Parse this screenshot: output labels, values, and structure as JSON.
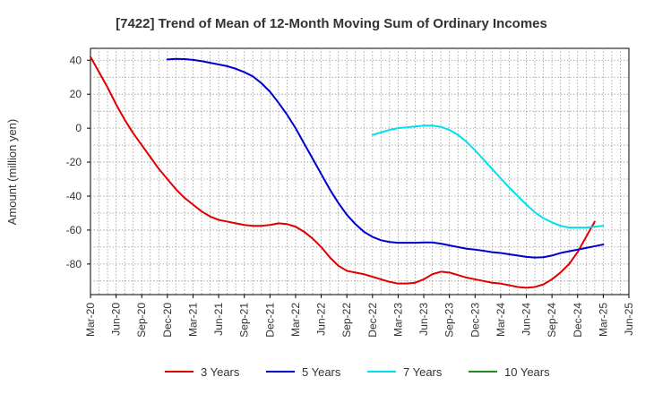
{
  "chart_data": {
    "type": "line",
    "title": "[7422]  Trend of Mean of 12-Month Moving Sum of Ordinary Incomes",
    "ylabel": "Amount (million yen)",
    "xlabel": "",
    "ylim": [
      -98,
      47
    ],
    "yticks": [
      40,
      20,
      0,
      -20,
      -40,
      -60,
      -80
    ],
    "x_start": "2020-03",
    "x_end": "2025-06",
    "x_tick_labels": [
      "Mar-20",
      "Jun-20",
      "Sep-20",
      "Dec-20",
      "Mar-21",
      "Jun-21",
      "Sep-21",
      "Dec-21",
      "Mar-22",
      "Jun-22",
      "Sep-22",
      "Dec-22",
      "Mar-23",
      "Jun-23",
      "Sep-23",
      "Dec-23",
      "Mar-24",
      "Jun-24",
      "Sep-24",
      "Dec-24",
      "Mar-25",
      "Jun-25"
    ],
    "grid": true,
    "series": [
      {
        "name": "3 Years",
        "color": "#e00000",
        "start_index": 0,
        "values": [
          42,
          33,
          24,
          14,
          5,
          -3,
          -10,
          -17,
          -24,
          -30,
          -36,
          -41,
          -45,
          -49,
          -52,
          -54,
          -55,
          -56,
          -57,
          -57.5,
          -57.5,
          -57,
          -56,
          -56.5,
          -58,
          -61,
          -65,
          -70,
          -76,
          -81,
          -84,
          -85,
          -86,
          -87.5,
          -89,
          -90.5,
          -91.5,
          -91.5,
          -91,
          -89,
          -86,
          -84.5,
          -85,
          -86.5,
          -88,
          -89,
          -90,
          -91,
          -91.5,
          -92.5,
          -93.5,
          -94,
          -93.5,
          -92,
          -89,
          -85,
          -80,
          -73,
          -64,
          -55
        ]
      },
      {
        "name": "5 Years",
        "color": "#0000cc",
        "start_index": 9,
        "values": [
          40.5,
          40.8,
          40.7,
          40.2,
          39.5,
          38.5,
          37.5,
          36.5,
          35,
          33,
          30.5,
          26.5,
          21.5,
          15,
          8,
          0,
          -9,
          -18,
          -27,
          -36,
          -44,
          -51,
          -56.5,
          -61,
          -64,
          -66,
          -67,
          -67.5,
          -67.5,
          -67.5,
          -67.3,
          -67.3,
          -68,
          -69,
          -70,
          -71,
          -71.5,
          -72.2,
          -73,
          -73.5,
          -74.3,
          -75,
          -75.8,
          -76.2,
          -76,
          -75,
          -73.5,
          -72.5,
          -71.5,
          -70.5,
          -69.5,
          -68.5
        ]
      },
      {
        "name": "7 Years",
        "color": "#00e0ee",
        "start_index": 33,
        "values": [
          -4,
          -2.5,
          -1,
          0,
          0.5,
          1,
          1.5,
          1.5,
          0.8,
          -1,
          -4,
          -8,
          -13,
          -18.5,
          -24,
          -29.5,
          -35,
          -40,
          -45,
          -49.5,
          -53,
          -55.5,
          -57.5,
          -58.5,
          -58.5,
          -58.5,
          -58,
          -57.5
        ]
      },
      {
        "name": "10 Years",
        "color": "#228822",
        "start_index": 0,
        "values": []
      }
    ]
  }
}
